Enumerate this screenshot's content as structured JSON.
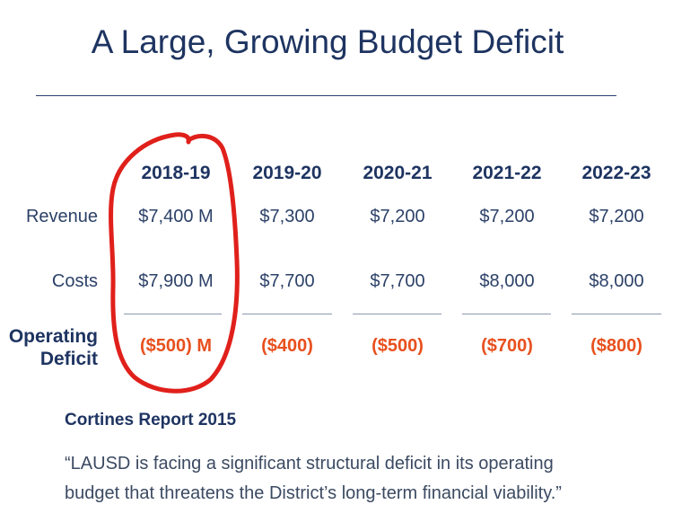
{
  "title": "A Large, Growing Budget Deficit",
  "table": {
    "years": [
      "2018-19",
      "2019-20",
      "2020-21",
      "2021-22",
      "2022-23"
    ],
    "rows": [
      {
        "label": "Revenue",
        "values": [
          "$7,400 M",
          "$7,300",
          "$7,200",
          "$7,200",
          "$7,200"
        ]
      },
      {
        "label": "Costs",
        "values": [
          "$7,900 M",
          "$7,700",
          "$7,700",
          "$8,000",
          "$8,000"
        ]
      }
    ],
    "deficit_label_line1": "Operating",
    "deficit_label_line2": "Deficit",
    "deficit_values": [
      "($500) M",
      "($400)",
      "($500)",
      "($700)",
      "($800)"
    ]
  },
  "source": {
    "heading": "Cortines Report 2015",
    "quote_line1": "“LAUSD is facing a significant structural deficit in its operating",
    "quote_line2": "budget that threatens the District’s long-term financial viability.”"
  },
  "colors": {
    "navy": "#1e3461",
    "deficit": "#e8501e",
    "annotation": "#e0201b"
  }
}
